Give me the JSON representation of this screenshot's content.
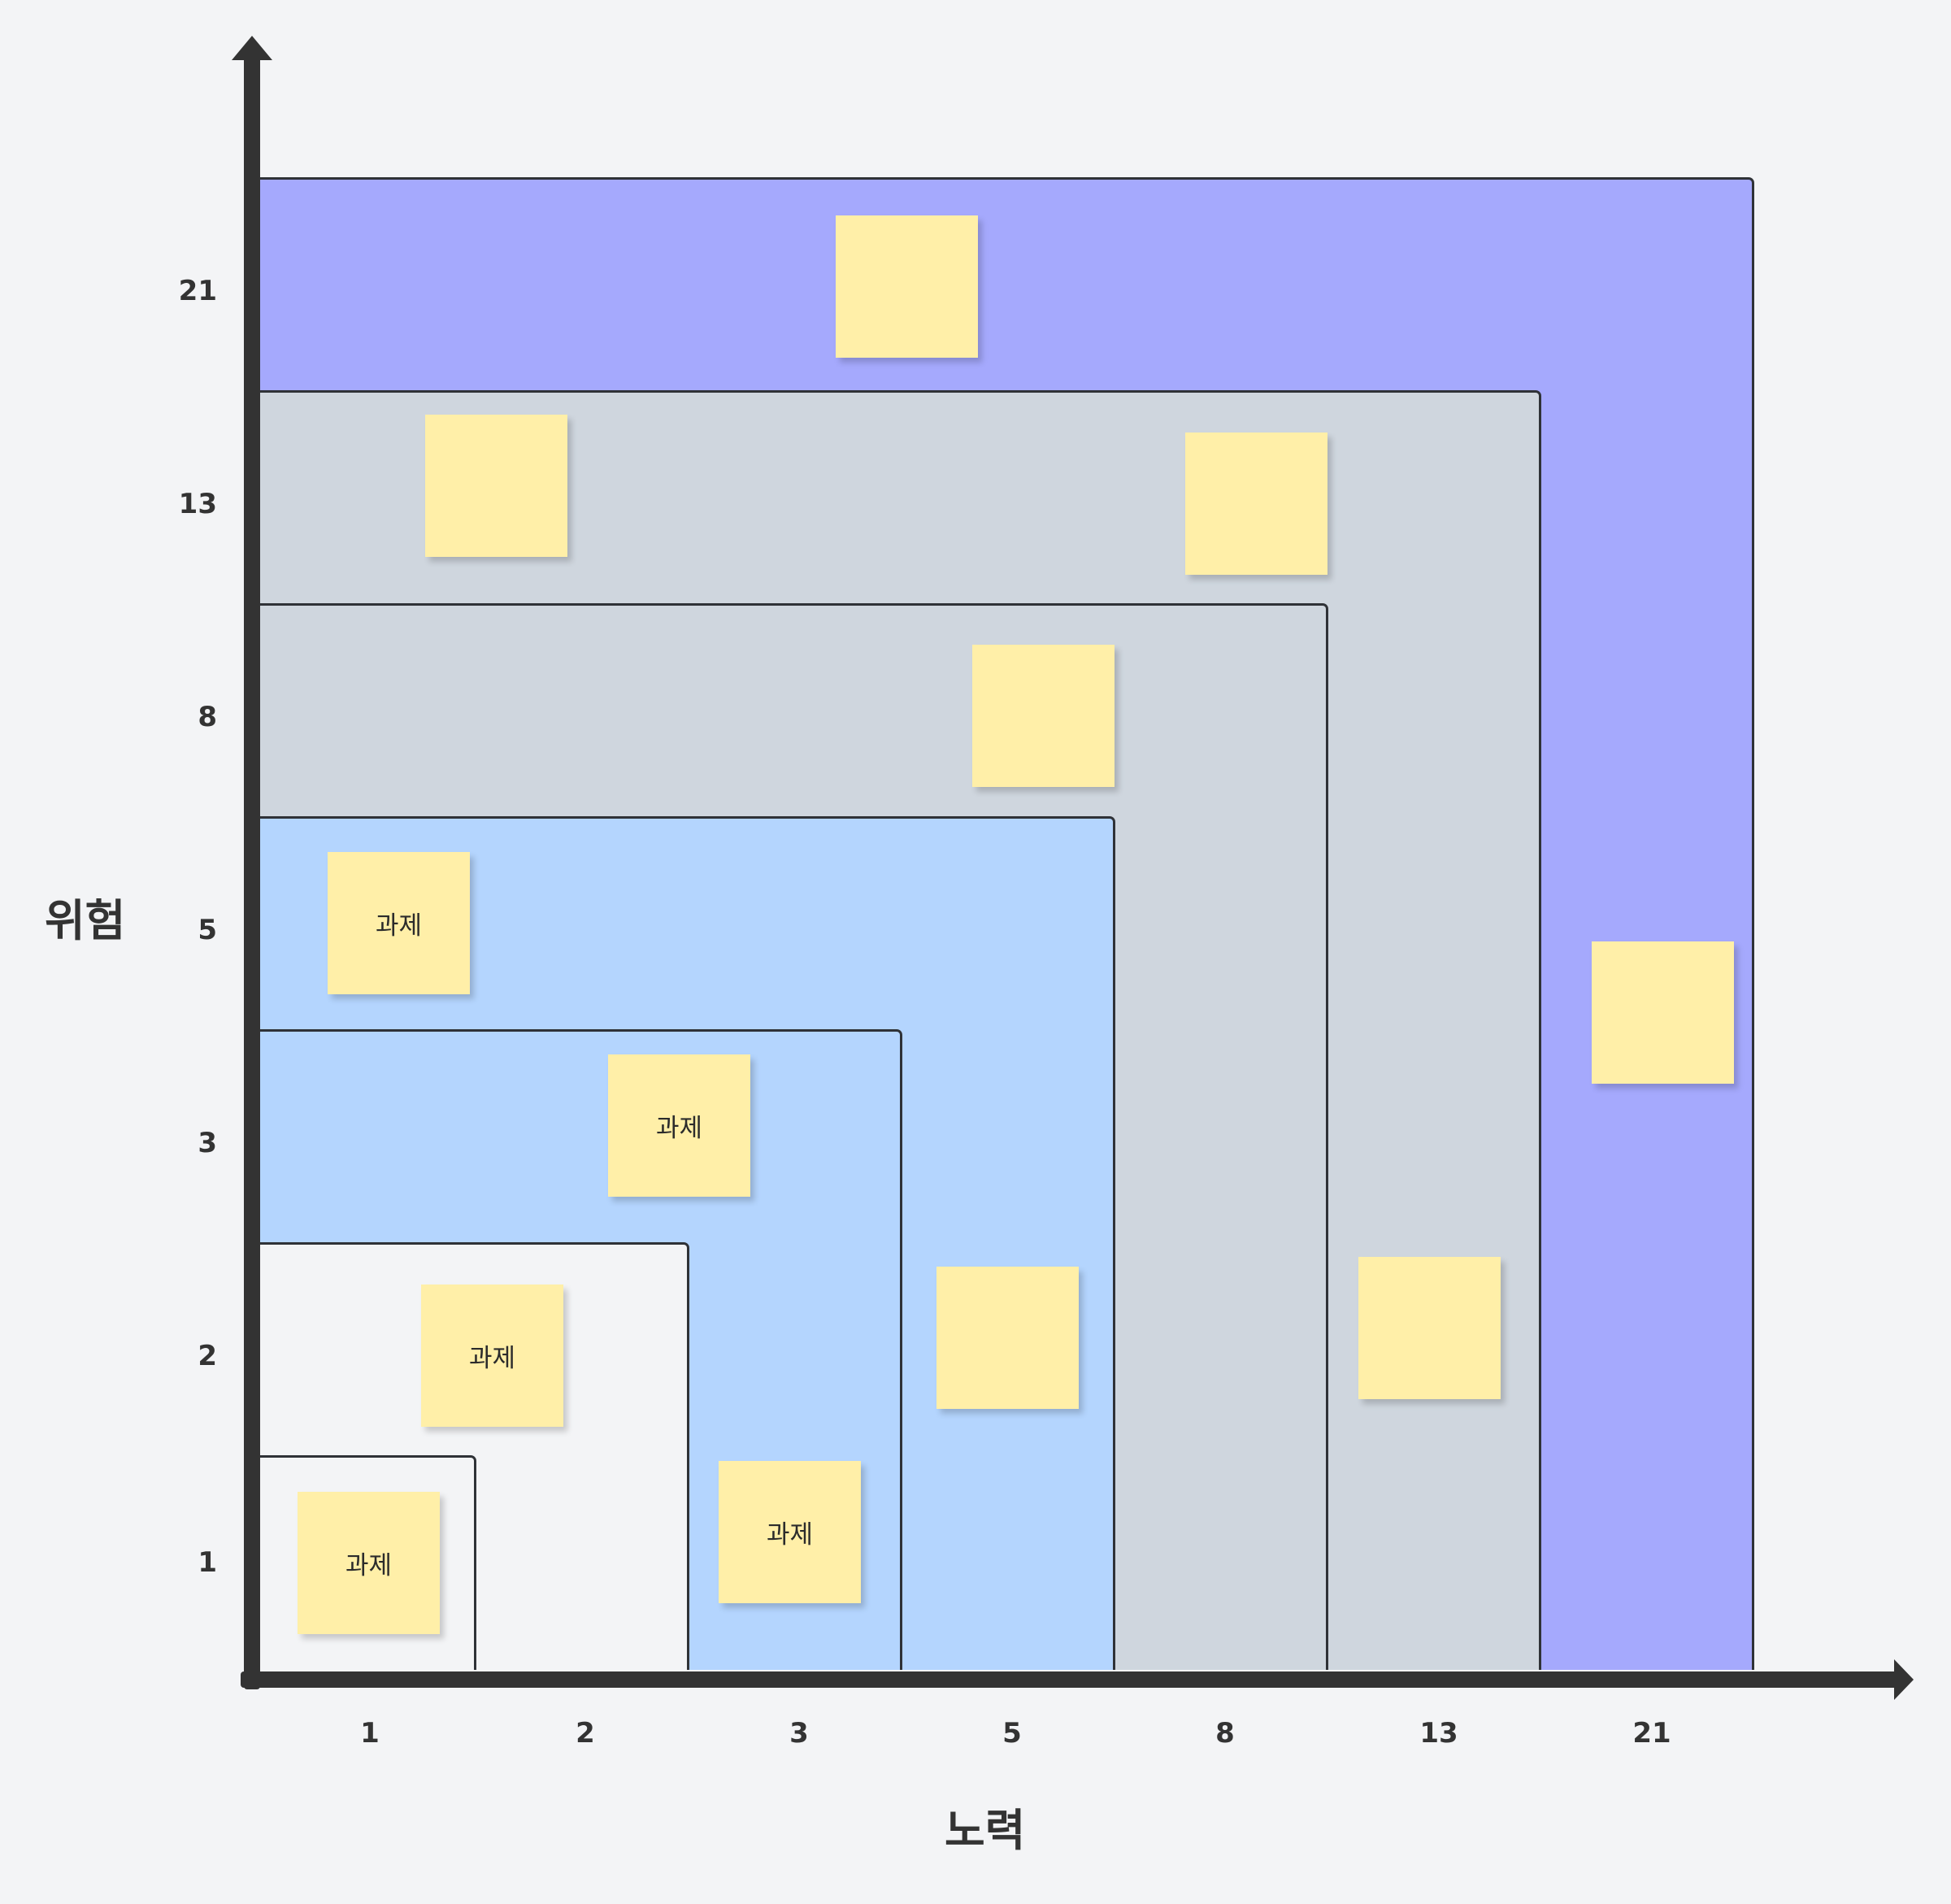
{
  "y_axis": {
    "label": "위험",
    "ticks": [
      "21",
      "13",
      "8",
      "5",
      "3",
      "2",
      "1"
    ]
  },
  "x_axis": {
    "label": "노력",
    "ticks": [
      "1",
      "2",
      "3",
      "5",
      "8",
      "13",
      "21"
    ]
  },
  "zones": [
    {
      "name": "zone-21",
      "color": "#a5a9fd"
    },
    {
      "name": "zone-13",
      "color": "#cfd6de"
    },
    {
      "name": "zone-8",
      "color": "#cfd6de"
    },
    {
      "name": "zone-5",
      "color": "#b4d5fe"
    },
    {
      "name": "zone-3",
      "color": "#b4d5fe"
    },
    {
      "name": "zone-2",
      "color": "#f3f4f6"
    },
    {
      "name": "zone-1",
      "color": "#f3f4f6"
    }
  ],
  "sticky_note_color": "#ffefa8",
  "notes": [
    {
      "text": ""
    },
    {
      "text": ""
    },
    {
      "text": ""
    },
    {
      "text": ""
    },
    {
      "text": "과제"
    },
    {
      "text": ""
    },
    {
      "text": "과제"
    },
    {
      "text": "과제"
    },
    {
      "text": ""
    },
    {
      "text": ""
    },
    {
      "text": "과제"
    },
    {
      "text": "과제"
    }
  ]
}
